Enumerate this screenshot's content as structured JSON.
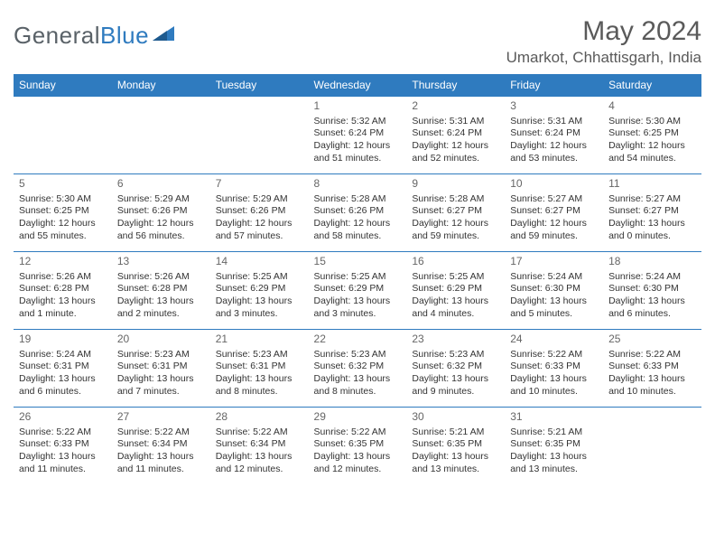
{
  "brand": {
    "part1": "General",
    "part2": "Blue"
  },
  "title": "May 2024",
  "location": "Umarkot, Chhattisgarh, India",
  "colors": {
    "header_bg": "#2f7bbf",
    "header_text": "#ffffff",
    "border": "#2f7bbf",
    "body_text": "#333333",
    "title_text": "#5a5a5a",
    "brand_gray": "#5a6268",
    "brand_blue": "#2f7bbf",
    "page_bg": "#ffffff"
  },
  "weekdays": [
    "Sunday",
    "Monday",
    "Tuesday",
    "Wednesday",
    "Thursday",
    "Friday",
    "Saturday"
  ],
  "weeks": [
    [
      null,
      null,
      null,
      {
        "d": "1",
        "sr": "Sunrise: 5:32 AM",
        "ss": "Sunset: 6:24 PM",
        "dl1": "Daylight: 12 hours",
        "dl2": "and 51 minutes."
      },
      {
        "d": "2",
        "sr": "Sunrise: 5:31 AM",
        "ss": "Sunset: 6:24 PM",
        "dl1": "Daylight: 12 hours",
        "dl2": "and 52 minutes."
      },
      {
        "d": "3",
        "sr": "Sunrise: 5:31 AM",
        "ss": "Sunset: 6:24 PM",
        "dl1": "Daylight: 12 hours",
        "dl2": "and 53 minutes."
      },
      {
        "d": "4",
        "sr": "Sunrise: 5:30 AM",
        "ss": "Sunset: 6:25 PM",
        "dl1": "Daylight: 12 hours",
        "dl2": "and 54 minutes."
      }
    ],
    [
      {
        "d": "5",
        "sr": "Sunrise: 5:30 AM",
        "ss": "Sunset: 6:25 PM",
        "dl1": "Daylight: 12 hours",
        "dl2": "and 55 minutes."
      },
      {
        "d": "6",
        "sr": "Sunrise: 5:29 AM",
        "ss": "Sunset: 6:26 PM",
        "dl1": "Daylight: 12 hours",
        "dl2": "and 56 minutes."
      },
      {
        "d": "7",
        "sr": "Sunrise: 5:29 AM",
        "ss": "Sunset: 6:26 PM",
        "dl1": "Daylight: 12 hours",
        "dl2": "and 57 minutes."
      },
      {
        "d": "8",
        "sr": "Sunrise: 5:28 AM",
        "ss": "Sunset: 6:26 PM",
        "dl1": "Daylight: 12 hours",
        "dl2": "and 58 minutes."
      },
      {
        "d": "9",
        "sr": "Sunrise: 5:28 AM",
        "ss": "Sunset: 6:27 PM",
        "dl1": "Daylight: 12 hours",
        "dl2": "and 59 minutes."
      },
      {
        "d": "10",
        "sr": "Sunrise: 5:27 AM",
        "ss": "Sunset: 6:27 PM",
        "dl1": "Daylight: 12 hours",
        "dl2": "and 59 minutes."
      },
      {
        "d": "11",
        "sr": "Sunrise: 5:27 AM",
        "ss": "Sunset: 6:27 PM",
        "dl1": "Daylight: 13 hours",
        "dl2": "and 0 minutes."
      }
    ],
    [
      {
        "d": "12",
        "sr": "Sunrise: 5:26 AM",
        "ss": "Sunset: 6:28 PM",
        "dl1": "Daylight: 13 hours",
        "dl2": "and 1 minute."
      },
      {
        "d": "13",
        "sr": "Sunrise: 5:26 AM",
        "ss": "Sunset: 6:28 PM",
        "dl1": "Daylight: 13 hours",
        "dl2": "and 2 minutes."
      },
      {
        "d": "14",
        "sr": "Sunrise: 5:25 AM",
        "ss": "Sunset: 6:29 PM",
        "dl1": "Daylight: 13 hours",
        "dl2": "and 3 minutes."
      },
      {
        "d": "15",
        "sr": "Sunrise: 5:25 AM",
        "ss": "Sunset: 6:29 PM",
        "dl1": "Daylight: 13 hours",
        "dl2": "and 3 minutes."
      },
      {
        "d": "16",
        "sr": "Sunrise: 5:25 AM",
        "ss": "Sunset: 6:29 PM",
        "dl1": "Daylight: 13 hours",
        "dl2": "and 4 minutes."
      },
      {
        "d": "17",
        "sr": "Sunrise: 5:24 AM",
        "ss": "Sunset: 6:30 PM",
        "dl1": "Daylight: 13 hours",
        "dl2": "and 5 minutes."
      },
      {
        "d": "18",
        "sr": "Sunrise: 5:24 AM",
        "ss": "Sunset: 6:30 PM",
        "dl1": "Daylight: 13 hours",
        "dl2": "and 6 minutes."
      }
    ],
    [
      {
        "d": "19",
        "sr": "Sunrise: 5:24 AM",
        "ss": "Sunset: 6:31 PM",
        "dl1": "Daylight: 13 hours",
        "dl2": "and 6 minutes."
      },
      {
        "d": "20",
        "sr": "Sunrise: 5:23 AM",
        "ss": "Sunset: 6:31 PM",
        "dl1": "Daylight: 13 hours",
        "dl2": "and 7 minutes."
      },
      {
        "d": "21",
        "sr": "Sunrise: 5:23 AM",
        "ss": "Sunset: 6:31 PM",
        "dl1": "Daylight: 13 hours",
        "dl2": "and 8 minutes."
      },
      {
        "d": "22",
        "sr": "Sunrise: 5:23 AM",
        "ss": "Sunset: 6:32 PM",
        "dl1": "Daylight: 13 hours",
        "dl2": "and 8 minutes."
      },
      {
        "d": "23",
        "sr": "Sunrise: 5:23 AM",
        "ss": "Sunset: 6:32 PM",
        "dl1": "Daylight: 13 hours",
        "dl2": "and 9 minutes."
      },
      {
        "d": "24",
        "sr": "Sunrise: 5:22 AM",
        "ss": "Sunset: 6:33 PM",
        "dl1": "Daylight: 13 hours",
        "dl2": "and 10 minutes."
      },
      {
        "d": "25",
        "sr": "Sunrise: 5:22 AM",
        "ss": "Sunset: 6:33 PM",
        "dl1": "Daylight: 13 hours",
        "dl2": "and 10 minutes."
      }
    ],
    [
      {
        "d": "26",
        "sr": "Sunrise: 5:22 AM",
        "ss": "Sunset: 6:33 PM",
        "dl1": "Daylight: 13 hours",
        "dl2": "and 11 minutes."
      },
      {
        "d": "27",
        "sr": "Sunrise: 5:22 AM",
        "ss": "Sunset: 6:34 PM",
        "dl1": "Daylight: 13 hours",
        "dl2": "and 11 minutes."
      },
      {
        "d": "28",
        "sr": "Sunrise: 5:22 AM",
        "ss": "Sunset: 6:34 PM",
        "dl1": "Daylight: 13 hours",
        "dl2": "and 12 minutes."
      },
      {
        "d": "29",
        "sr": "Sunrise: 5:22 AM",
        "ss": "Sunset: 6:35 PM",
        "dl1": "Daylight: 13 hours",
        "dl2": "and 12 minutes."
      },
      {
        "d": "30",
        "sr": "Sunrise: 5:21 AM",
        "ss": "Sunset: 6:35 PM",
        "dl1": "Daylight: 13 hours",
        "dl2": "and 13 minutes."
      },
      {
        "d": "31",
        "sr": "Sunrise: 5:21 AM",
        "ss": "Sunset: 6:35 PM",
        "dl1": "Daylight: 13 hours",
        "dl2": "and 13 minutes."
      },
      null
    ]
  ]
}
